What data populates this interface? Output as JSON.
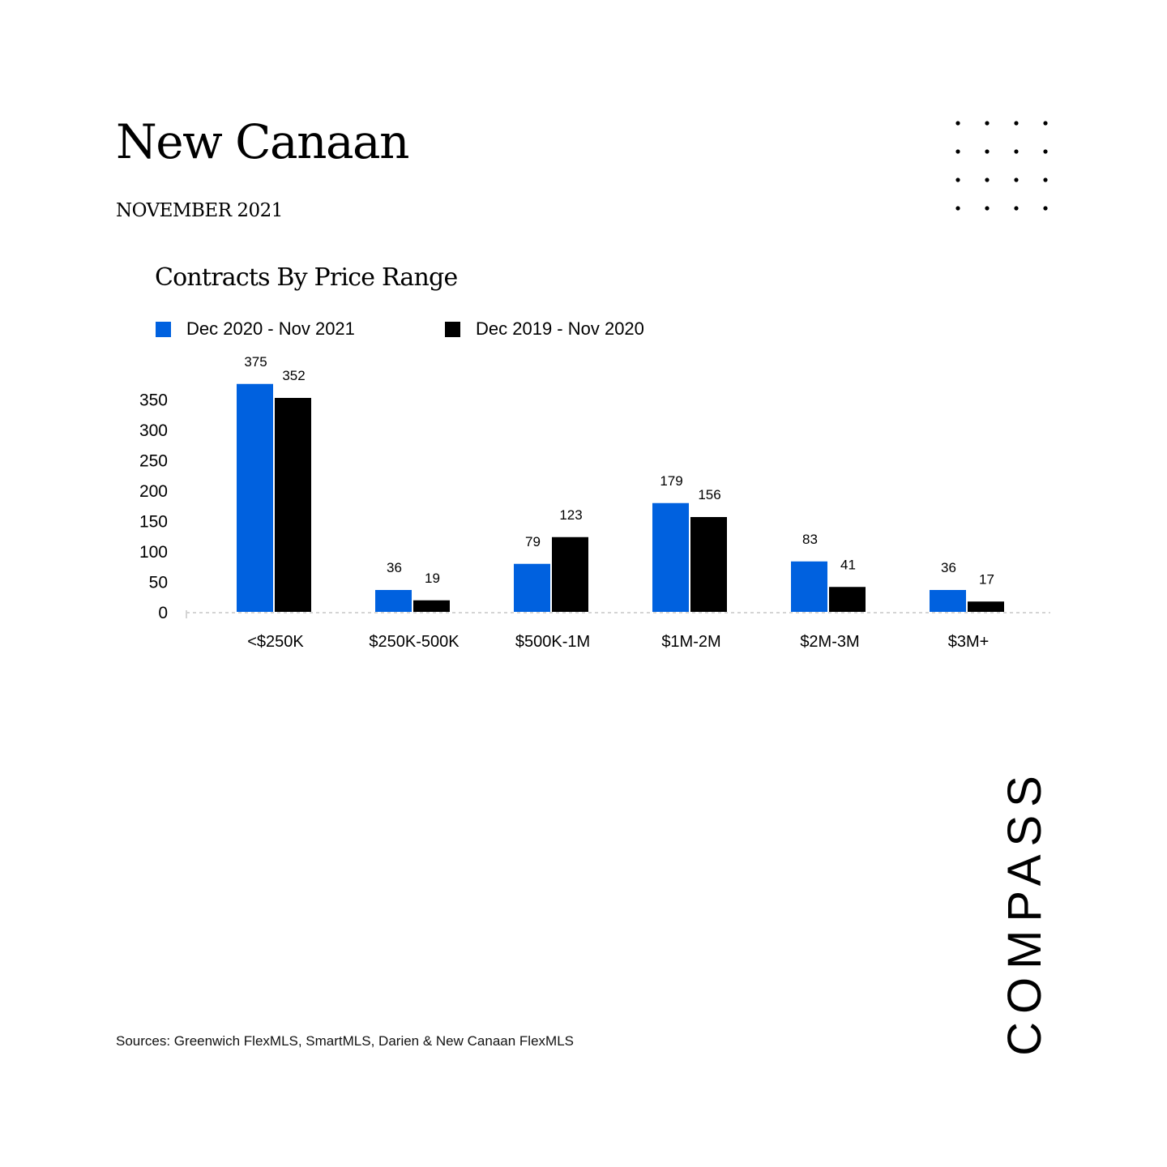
{
  "header": {
    "title": "New Canaan",
    "subtitle": "NOVEMBER 2021"
  },
  "chart_data": {
    "type": "bar",
    "title": "Contracts By Price Range",
    "xlabel": "",
    "ylabel": "",
    "categories": [
      "<$250K",
      "$250K-500K",
      "$500K-1M",
      "$1M-2M",
      "$2M-3M",
      "$3M+"
    ],
    "series": [
      {
        "name": "Dec 2020 - Nov 2021",
        "values": [
          375,
          36,
          79,
          179,
          83,
          36
        ],
        "color": "#0061df"
      },
      {
        "name": "Dec 2019 - Nov 2020",
        "values": [
          352,
          19,
          123,
          156,
          41,
          17
        ],
        "color": "#000000"
      }
    ],
    "yticks": [
      0,
      50,
      100,
      150,
      200,
      250,
      300,
      350
    ],
    "ylim": [
      0,
      375
    ],
    "grid": false,
    "legend": "top-left",
    "data_labels": true
  },
  "footer": {
    "sources": "Sources: Greenwich FlexMLS, SmartMLS, Darien & New Canaan FlexMLS"
  },
  "logo": {
    "text": "COMPASS"
  }
}
